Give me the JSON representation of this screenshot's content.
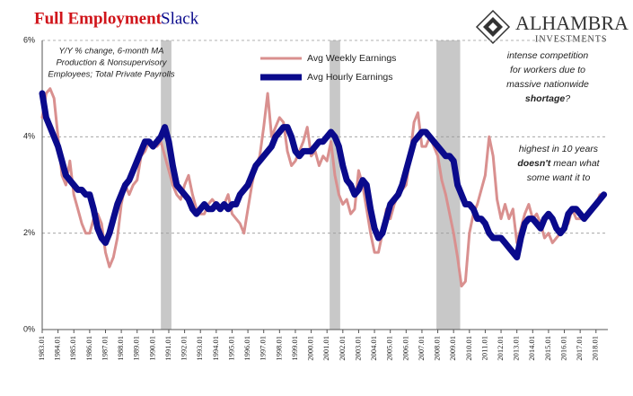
{
  "chart_data": {
    "type": "line",
    "title": "Full Employment",
    "title_accent": "Slack",
    "subtitle_lines": [
      "Y/Y % change, 6-month MA",
      "Production & Nonsupervisory",
      "Employees; Total Private Payrolls"
    ],
    "logo": {
      "name": "ALHAMBRA",
      "tagline": "INVESTMENTS"
    },
    "annotations": [
      {
        "lines": [
          [
            {
              "text": "intense competition",
              "bold": false
            }
          ],
          [
            {
              "text": "for workers due to",
              "bold": false
            }
          ],
          [
            {
              "text": "massive nationwide",
              "bold": false
            }
          ],
          [
            {
              "text": "shortage",
              "bold": true
            },
            {
              "text": "?",
              "bold": false
            }
          ]
        ]
      },
      {
        "lines": [
          [
            {
              "text": "highest in 10 years",
              "bold": false
            }
          ],
          [
            {
              "text": "doesn't",
              "bold": true
            },
            {
              "text": " mean what",
              "bold": false
            }
          ],
          [
            {
              "text": "some want it to",
              "bold": false
            }
          ]
        ]
      }
    ],
    "recessions": [
      [
        "1990.07",
        "1991.03"
      ],
      [
        "2001.03",
        "2001.11"
      ],
      [
        "2007.12",
        "2009.06"
      ]
    ],
    "recession_color": "#c8c8c8",
    "grid": true,
    "legend": "top",
    "xlim": [
      "1983.01",
      "2018.10"
    ],
    "ylim": [
      0,
      6
    ],
    "yticks": [
      {
        "value": 0,
        "label": "0%"
      },
      {
        "value": 2,
        "label": "2%"
      },
      {
        "value": 4,
        "label": "4%"
      },
      {
        "value": 6,
        "label": "6%"
      }
    ],
    "xticks": [
      "1983.01",
      "1984.01",
      "1985.01",
      "1986.01",
      "1987.01",
      "1988.01",
      "1989.01",
      "1990.01",
      "1991.01",
      "1992.01",
      "1993.01",
      "1994.01",
      "1995.01",
      "1996.01",
      "1997.01",
      "1998.01",
      "1999.01",
      "2000.01",
      "2001.01",
      "2002.01",
      "2003.01",
      "2004.01",
      "2005.01",
      "2006.01",
      "2007.01",
      "2008.01",
      "2009.01",
      "2010.01",
      "2011.01",
      "2012.01",
      "2013.01",
      "2014.01",
      "2015.01",
      "2016.01",
      "2017.01",
      "2018.01"
    ],
    "x": [
      "1983.01",
      "1983.04",
      "1983.07",
      "1983.10",
      "1984.01",
      "1984.04",
      "1984.07",
      "1984.10",
      "1985.01",
      "1985.04",
      "1985.07",
      "1985.10",
      "1986.01",
      "1986.04",
      "1986.07",
      "1986.10",
      "1987.01",
      "1987.04",
      "1987.07",
      "1987.10",
      "1988.01",
      "1988.04",
      "1988.07",
      "1988.10",
      "1989.01",
      "1989.04",
      "1989.07",
      "1989.10",
      "1990.01",
      "1990.04",
      "1990.07",
      "1990.10",
      "1991.01",
      "1991.04",
      "1991.07",
      "1991.10",
      "1992.01",
      "1992.04",
      "1992.07",
      "1992.10",
      "1993.01",
      "1993.04",
      "1993.07",
      "1993.10",
      "1994.01",
      "1994.04",
      "1994.07",
      "1994.10",
      "1995.01",
      "1995.04",
      "1995.07",
      "1995.10",
      "1996.01",
      "1996.04",
      "1996.07",
      "1996.10",
      "1997.01",
      "1997.04",
      "1997.07",
      "1997.10",
      "1998.01",
      "1998.04",
      "1998.07",
      "1998.10",
      "1999.01",
      "1999.04",
      "1999.07",
      "1999.10",
      "2000.01",
      "2000.04",
      "2000.07",
      "2000.10",
      "2001.01",
      "2001.04",
      "2001.07",
      "2001.10",
      "2002.01",
      "2002.04",
      "2002.07",
      "2002.10",
      "2003.01",
      "2003.04",
      "2003.07",
      "2003.10",
      "2004.01",
      "2004.04",
      "2004.07",
      "2004.10",
      "2005.01",
      "2005.04",
      "2005.07",
      "2005.10",
      "2006.01",
      "2006.04",
      "2006.07",
      "2006.10",
      "2007.01",
      "2007.04",
      "2007.07",
      "2007.10",
      "2008.01",
      "2008.04",
      "2008.07",
      "2008.10",
      "2009.01",
      "2009.04",
      "2009.07",
      "2009.10",
      "2010.01",
      "2010.04",
      "2010.07",
      "2010.10",
      "2011.01",
      "2011.04",
      "2011.07",
      "2011.10",
      "2012.01",
      "2012.04",
      "2012.07",
      "2012.10",
      "2013.01",
      "2013.04",
      "2013.07",
      "2013.10",
      "2014.01",
      "2014.04",
      "2014.07",
      "2014.10",
      "2015.01",
      "2015.04",
      "2015.07",
      "2015.10",
      "2016.01",
      "2016.04",
      "2016.07",
      "2016.10",
      "2017.01",
      "2017.04",
      "2017.07",
      "2017.10",
      "2018.01",
      "2018.04",
      "2018.07"
    ],
    "series": [
      {
        "name": "Avg Weekly Earnings",
        "color": "#d9908f",
        "width": 3,
        "values": [
          4.4,
          4.9,
          5.0,
          4.8,
          4.0,
          3.2,
          3.0,
          3.5,
          2.8,
          2.5,
          2.2,
          2.0,
          2.0,
          2.3,
          2.4,
          2.2,
          1.6,
          1.3,
          1.5,
          1.9,
          2.6,
          3.0,
          2.8,
          3.0,
          3.1,
          3.6,
          3.7,
          3.9,
          3.8,
          3.8,
          3.9,
          3.6,
          3.3,
          3.0,
          2.8,
          2.7,
          3.0,
          3.2,
          2.8,
          2.5,
          2.4,
          2.4,
          2.6,
          2.7,
          2.6,
          2.5,
          2.6,
          2.8,
          2.4,
          2.3,
          2.2,
          2.0,
          2.5,
          3.0,
          3.4,
          3.6,
          4.2,
          4.9,
          4.0,
          4.2,
          4.4,
          4.3,
          3.7,
          3.4,
          3.5,
          3.7,
          3.9,
          4.2,
          3.6,
          3.7,
          3.4,
          3.6,
          3.5,
          3.9,
          3.2,
          2.8,
          2.6,
          2.7,
          2.4,
          2.5,
          3.3,
          3.0,
          2.5,
          2.0,
          1.6,
          1.6,
          2.0,
          2.5,
          2.3,
          2.6,
          2.8,
          2.9,
          3.0,
          3.6,
          4.3,
          4.5,
          3.8,
          3.8,
          4.0,
          3.8,
          3.6,
          3.1,
          2.8,
          2.4,
          2.0,
          1.5,
          0.9,
          1.0,
          2.0,
          2.4,
          2.6,
          2.9,
          3.2,
          4.0,
          3.6,
          2.7,
          2.3,
          2.6,
          2.3,
          2.5,
          1.8,
          2.1,
          2.4,
          2.6,
          2.3,
          2.4,
          2.2,
          1.9,
          2.0,
          1.8,
          1.9,
          2.0,
          2.1,
          2.2,
          2.5,
          2.3,
          2.3,
          2.3,
          2.4,
          2.5,
          2.6,
          2.8,
          2.8
        ]
      },
      {
        "name": "Avg Hourly Earnings",
        "color": "#0a0a8c",
        "width": 7,
        "values": [
          4.9,
          4.4,
          4.2,
          4.0,
          3.8,
          3.5,
          3.2,
          3.1,
          3.0,
          2.9,
          2.9,
          2.8,
          2.8,
          2.5,
          2.1,
          1.9,
          1.8,
          2.0,
          2.3,
          2.6,
          2.8,
          3.0,
          3.1,
          3.3,
          3.5,
          3.7,
          3.9,
          3.9,
          3.8,
          3.9,
          4.0,
          4.2,
          3.9,
          3.4,
          3.0,
          2.9,
          2.8,
          2.7,
          2.5,
          2.4,
          2.5,
          2.6,
          2.5,
          2.5,
          2.6,
          2.5,
          2.6,
          2.5,
          2.6,
          2.6,
          2.8,
          2.9,
          3.0,
          3.2,
          3.4,
          3.5,
          3.6,
          3.7,
          3.8,
          4.0,
          4.1,
          4.2,
          4.2,
          4.0,
          3.7,
          3.6,
          3.7,
          3.7,
          3.7,
          3.8,
          3.9,
          3.9,
          4.0,
          4.1,
          4.0,
          3.8,
          3.4,
          3.1,
          3.0,
          2.8,
          2.9,
          3.1,
          3.0,
          2.5,
          2.1,
          1.9,
          2.0,
          2.3,
          2.6,
          2.7,
          2.8,
          3.0,
          3.3,
          3.6,
          3.9,
          4.0,
          4.1,
          4.1,
          4.0,
          3.9,
          3.8,
          3.7,
          3.6,
          3.6,
          3.5,
          3.0,
          2.8,
          2.6,
          2.6,
          2.5,
          2.3,
          2.3,
          2.2,
          2.0,
          1.9,
          1.9,
          1.9,
          1.8,
          1.7,
          1.6,
          1.5,
          1.9,
          2.2,
          2.3,
          2.3,
          2.2,
          2.1,
          2.3,
          2.4,
          2.3,
          2.1,
          2.0,
          2.1,
          2.4,
          2.5,
          2.5,
          2.4,
          2.3,
          2.4,
          2.5,
          2.6,
          2.7,
          2.8
        ]
      }
    ]
  }
}
